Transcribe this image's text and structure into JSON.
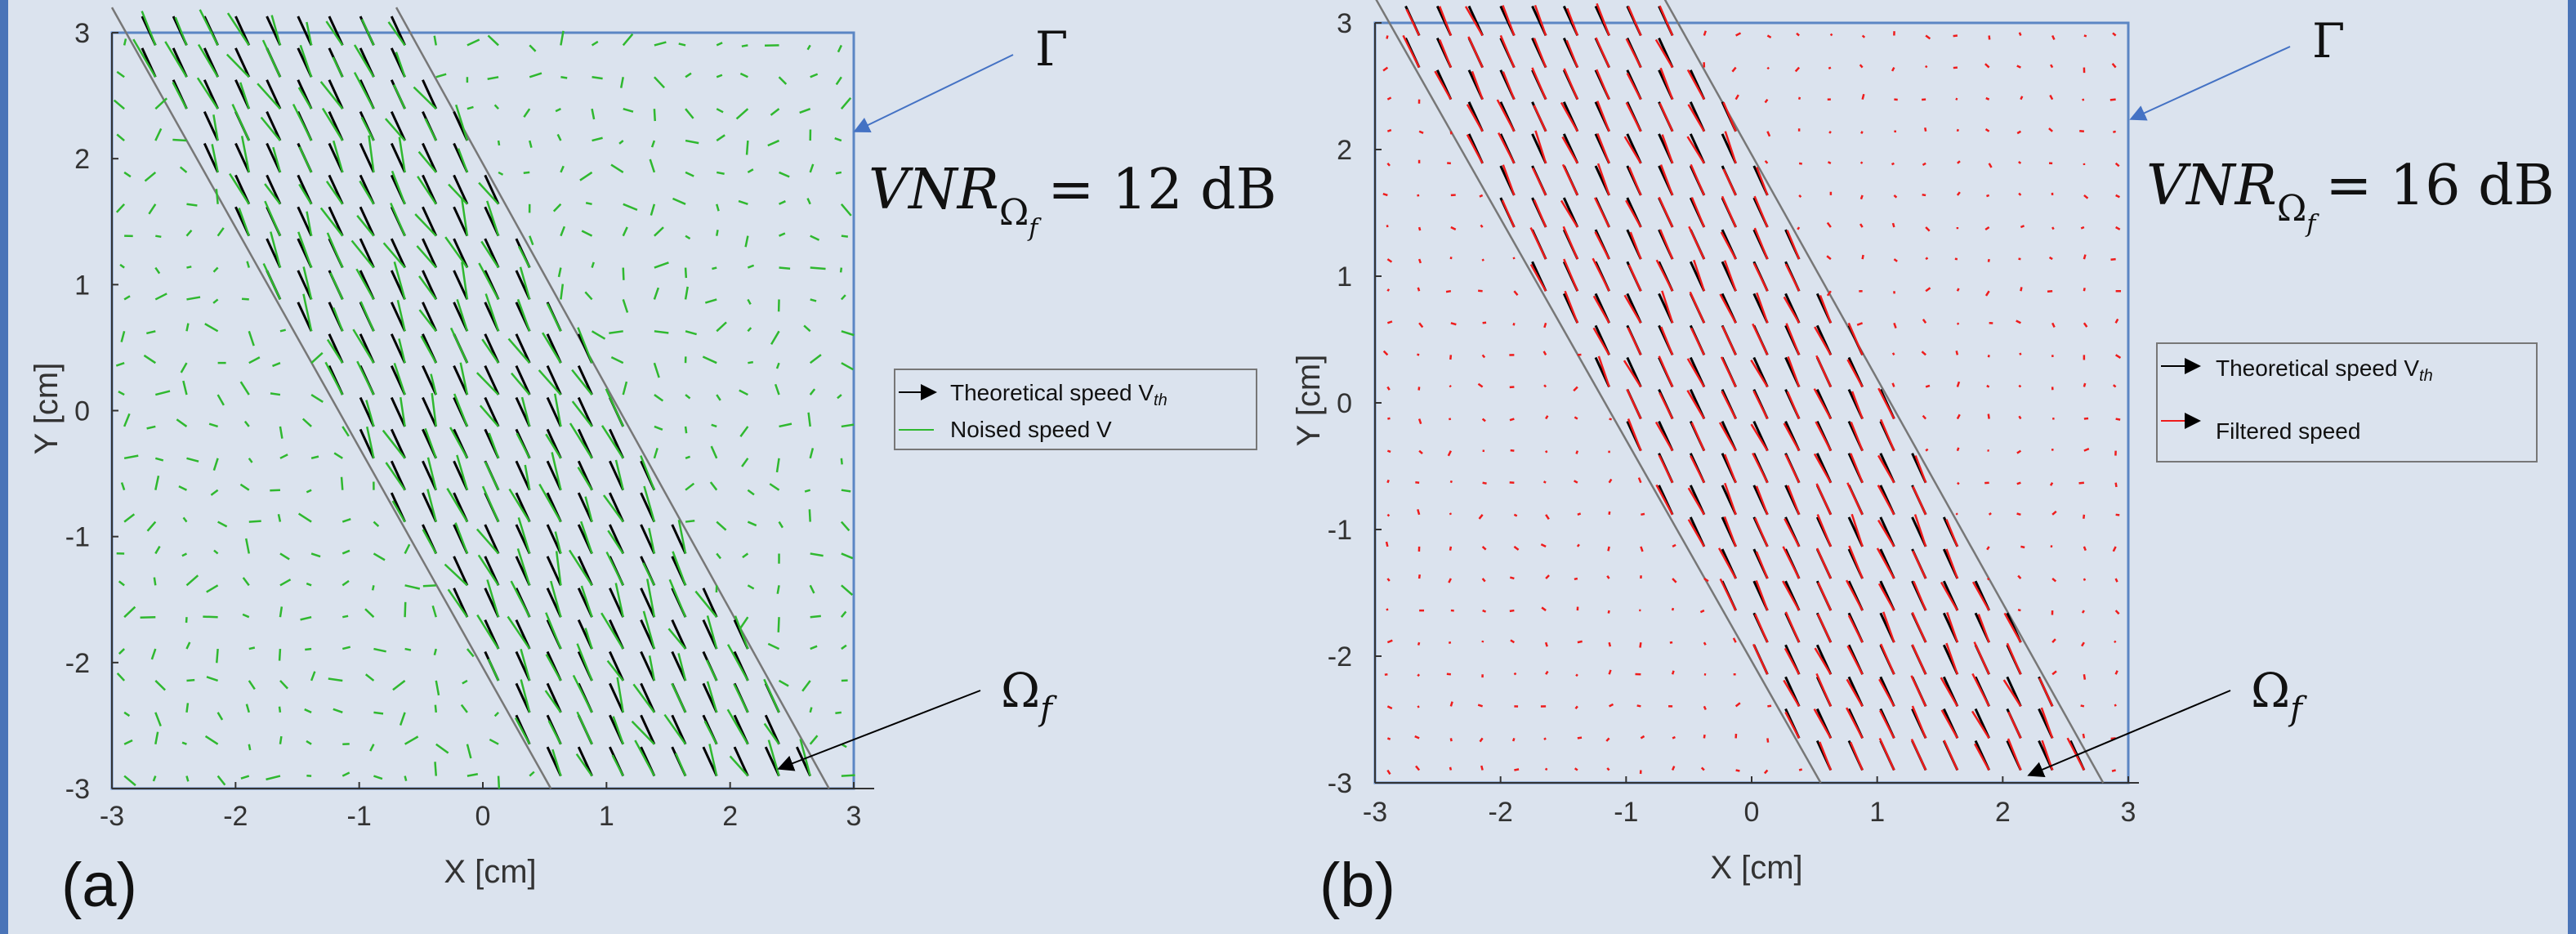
{
  "chart_data": [
    {
      "panel": "(a)",
      "type": "scatter",
      "title": "",
      "xlabel": "X [cm]",
      "ylabel": "Y [cm]",
      "xlim": [
        -3,
        3
      ],
      "ylim": [
        -3,
        3
      ],
      "x_ticks": [
        "-3",
        "-2",
        "-1",
        "0",
        "1",
        "2",
        "3"
      ],
      "y_ticks": [
        "3",
        "2",
        "1",
        "0",
        "-1",
        "-2",
        "-3"
      ],
      "grid": false,
      "legend_position": "right",
      "legend": [
        {
          "name": "Theoretical speed",
          "subscript": "V_th",
          "color": "#000000"
        },
        {
          "name": "Noised speed",
          "subscript": "V",
          "color": "#2fb82f"
        }
      ],
      "annotation_vnr": "VNR_Ωf = 12 dB",
      "annotation_boundary": "Γ",
      "annotation_region": "Ωf",
      "region_boundaries": [
        {
          "x_top": -3,
          "y_top": 3.2,
          "x_bottom": 0.55,
          "y_bottom": -3
        },
        {
          "x_top": -0.7,
          "y_top": 3.2,
          "x_bottom": 2.8,
          "y_bottom": -3
        }
      ],
      "flow_vector": {
        "dx": -0.12,
        "dy": 0.26
      },
      "noise_level": 0.28
    },
    {
      "panel": "(b)",
      "type": "scatter",
      "title": "",
      "xlabel": "X [cm]",
      "ylabel": "Y [cm]",
      "xlim": [
        -3,
        3
      ],
      "ylim": [
        -3,
        3
      ],
      "x_ticks": [
        "-3",
        "-2",
        "-1",
        "0",
        "1",
        "2",
        "3"
      ],
      "y_ticks": [
        "3",
        "2",
        "1",
        "0",
        "-1",
        "-2",
        "-3"
      ],
      "grid": false,
      "legend_position": "right",
      "legend": [
        {
          "name": "Theoretical speed",
          "subscript": "V_th",
          "color": "#000000"
        },
        {
          "name": "Filtered speed",
          "subscript": "",
          "color": "#ee1c1c"
        }
      ],
      "annotation_vnr": "VNR_Ωf = 16 dB",
      "annotation_boundary": "Γ",
      "annotation_region": "Ωf",
      "region_boundaries": [
        {
          "x_top": -3,
          "y_top": 3.2,
          "x_bottom": 0.55,
          "y_bottom": -3
        },
        {
          "x_top": -0.7,
          "y_top": 3.2,
          "x_bottom": 2.8,
          "y_bottom": -3
        }
      ],
      "flow_vector": {
        "dx": -0.12,
        "dy": 0.26
      },
      "noise_level": 0.1
    }
  ],
  "labels": {
    "panel_a": "(a)",
    "panel_b": "(b)",
    "gamma": "Γ",
    "omega": "Ω",
    "omega_sub": "f",
    "vnr_a_main": "VNR",
    "vnr_a_value": "= 12 dB",
    "vnr_b_main": "VNR",
    "vnr_b_value": "= 16 dB",
    "legend_a_1": "Theoretical speed V",
    "legend_a_1_sub": "th",
    "legend_a_2": "Noised speed V",
    "legend_b_1": "Theoretical speed V",
    "legend_b_1_sub": "th",
    "legend_b_2": "Filtered speed"
  }
}
